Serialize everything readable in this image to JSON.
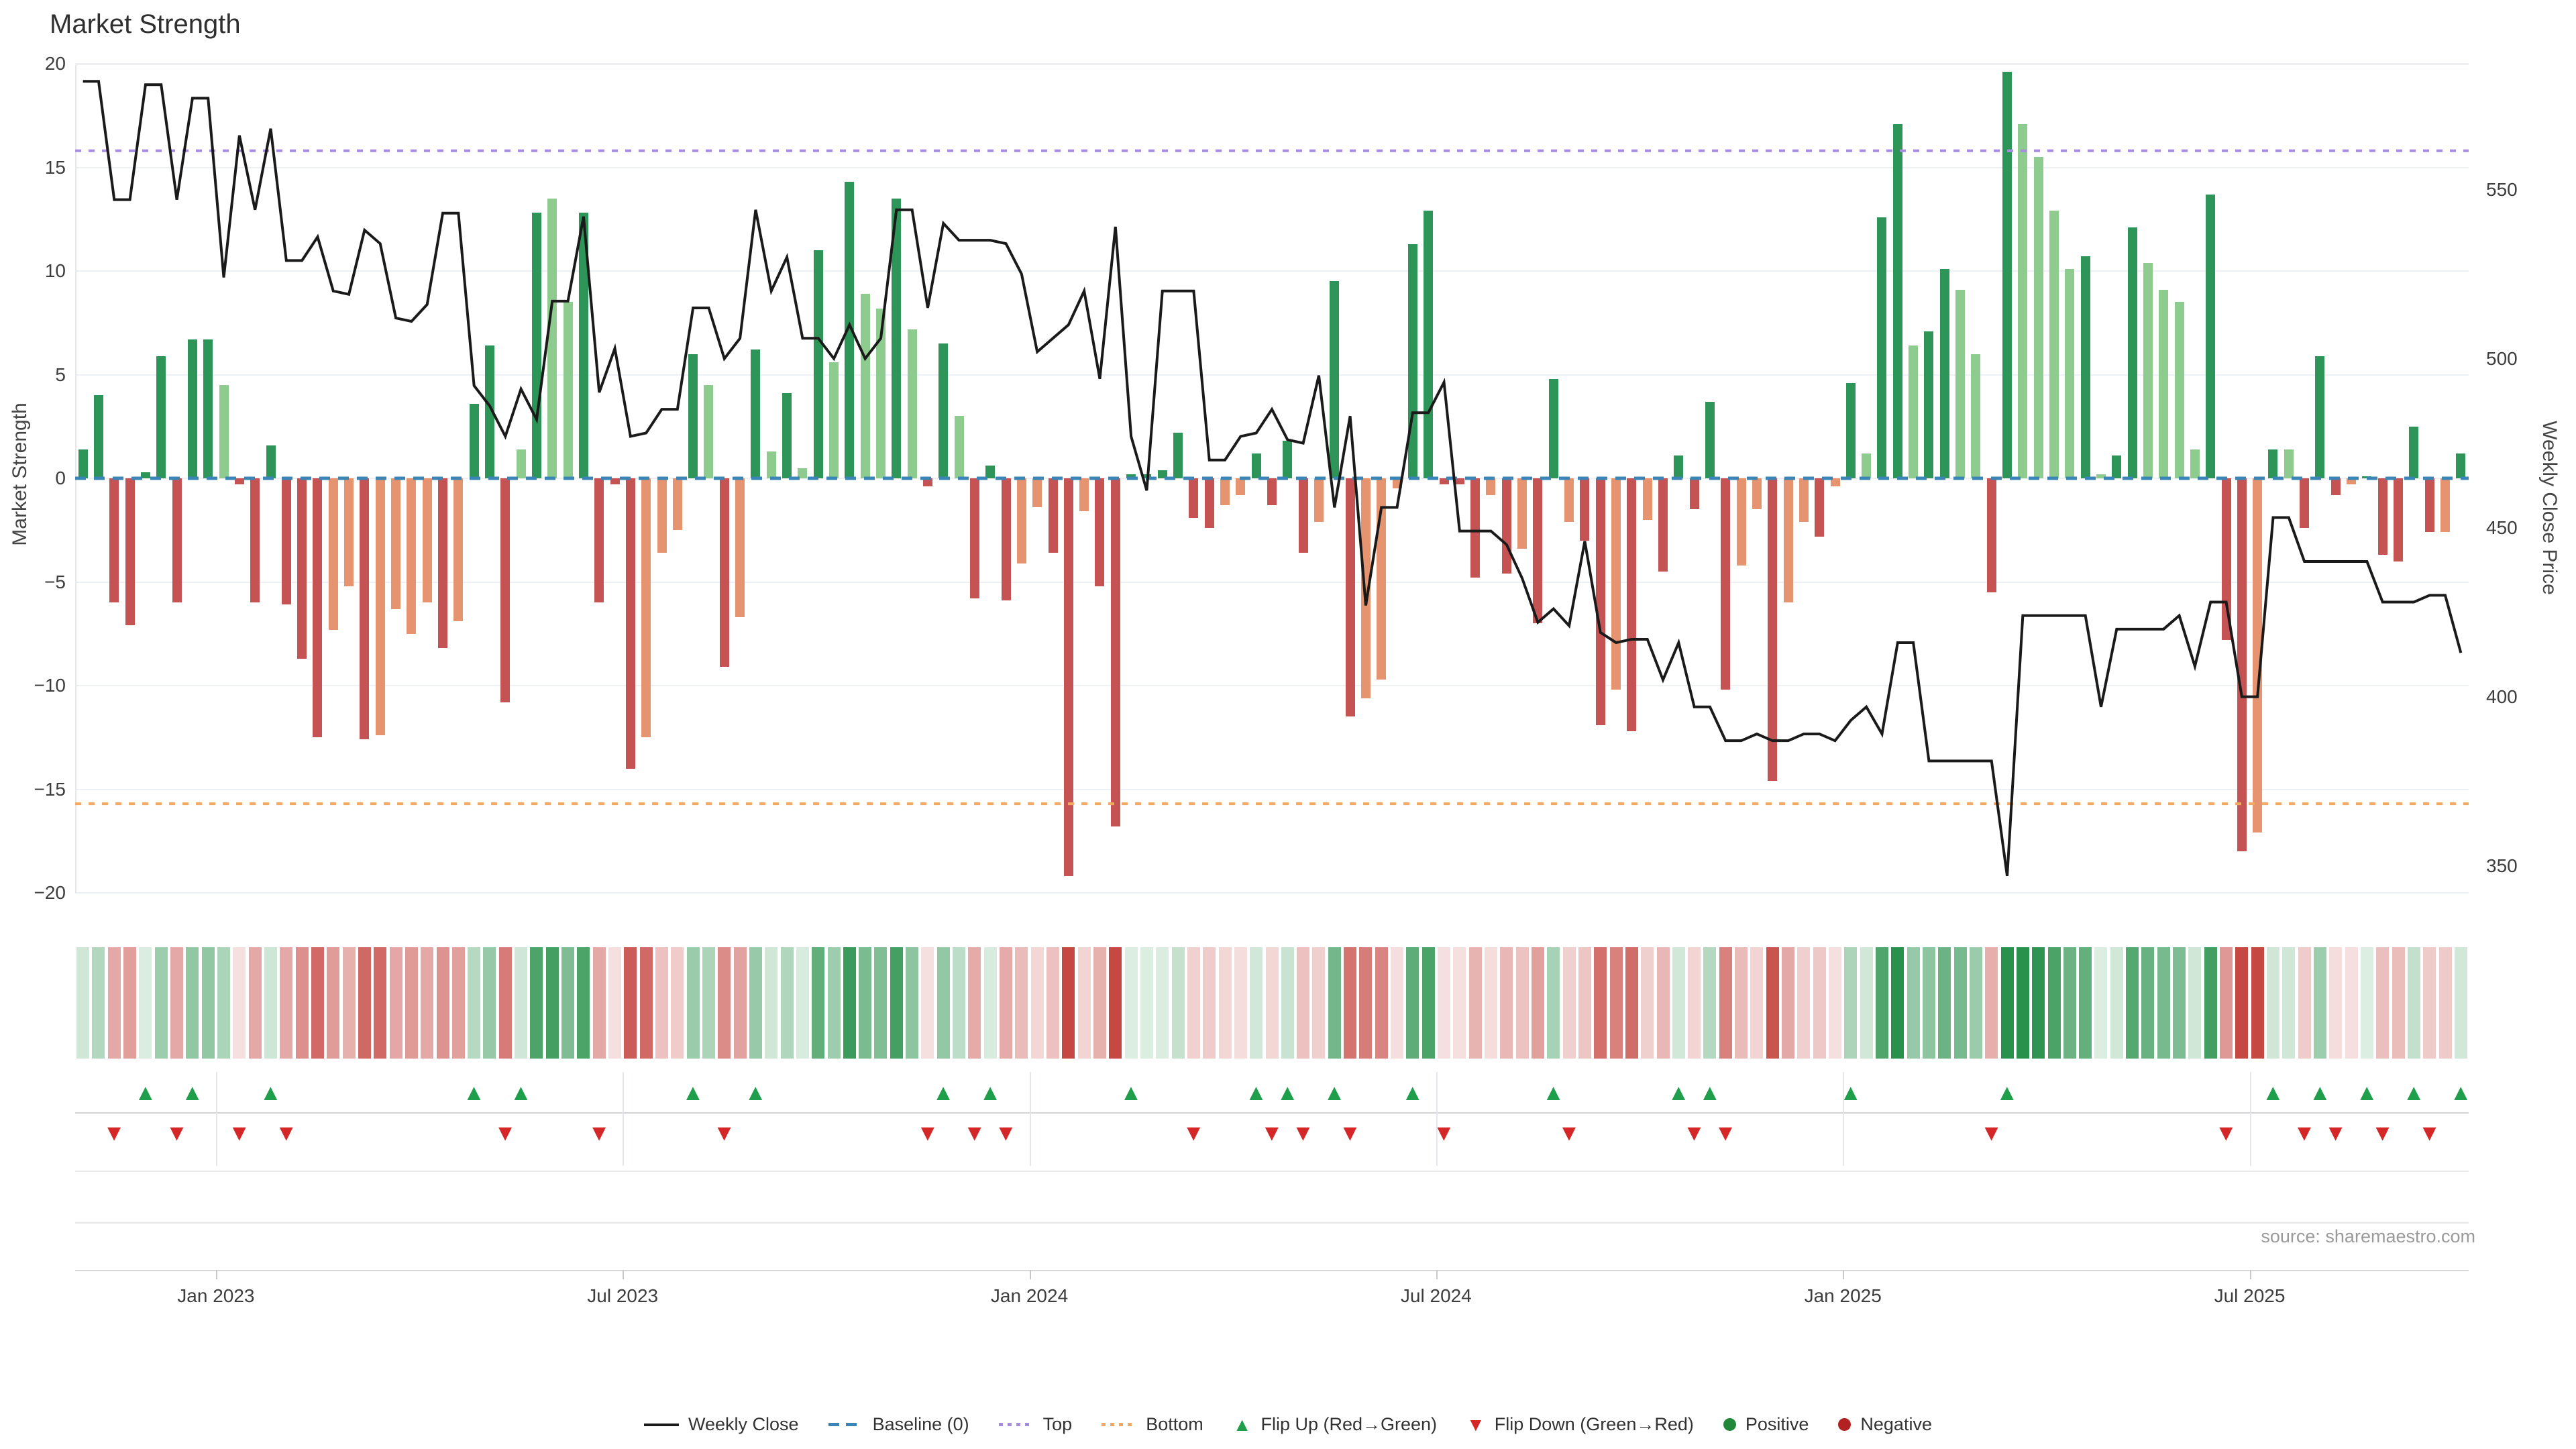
{
  "title": "Market Strength",
  "source": "source: sharemaestro.com",
  "y_left": {
    "label": "Market Strength",
    "ticks": [
      20,
      15,
      10,
      5,
      0,
      -5,
      -10,
      -15,
      -20
    ],
    "range": [
      -20,
      20
    ]
  },
  "y_right": {
    "label": "Weekly Close Price",
    "ticks": [
      550,
      500,
      450,
      400,
      350
    ]
  },
  "legend": {
    "items": [
      {
        "id": "weekly-close",
        "label": "Weekly Close",
        "type": "line",
        "color": "#1a1a1a"
      },
      {
        "id": "baseline",
        "label": "Baseline (0)",
        "type": "dash",
        "color": "#3a85b5"
      },
      {
        "id": "top",
        "label": "Top",
        "type": "dotted",
        "color": "#a78de0"
      },
      {
        "id": "bottom",
        "label": "Bottom",
        "type": "dotted",
        "color": "#f2a965"
      },
      {
        "id": "flip-up",
        "label": "Flip Up (Red→Green)",
        "type": "tri-up",
        "color": "#1f9e4b"
      },
      {
        "id": "flip-down",
        "label": "Flip Down (Green→Red)",
        "type": "tri-down",
        "color": "#d62728"
      },
      {
        "id": "positive",
        "label": "Positive",
        "type": "circle",
        "color": "#218739"
      },
      {
        "id": "negative",
        "label": "Negative",
        "type": "circle",
        "color": "#b22222"
      }
    ]
  },
  "chart_data": {
    "type": "bar",
    "subtype": "bar+line+heatmap",
    "title": "Market Strength",
    "ylabel_left": "Market Strength",
    "ylabel_right": "Weekly Close Price",
    "baseline": 0,
    "top_band": 15.8,
    "bottom_band": -15.7,
    "y_left_range": [
      -20,
      20
    ],
    "price_at_zero_strength": 464.6,
    "price_per_strength_unit": 6.13,
    "n_weeks": 153,
    "x_ticks": [
      {
        "label": "Jan 2023",
        "week": 9
      },
      {
        "label": "Jul 2023",
        "week": 35
      },
      {
        "label": "Jan 2024",
        "week": 61
      },
      {
        "label": "Jul 2024",
        "week": 87
      },
      {
        "label": "Jan 2025",
        "week": 113
      },
      {
        "label": "Jul 2025",
        "week": 139
      }
    ],
    "strength": [
      1.4,
      4.0,
      -6.0,
      -7.1,
      0.3,
      5.9,
      -6.0,
      6.7,
      6.7,
      4.5,
      -0.3,
      -6.0,
      1.6,
      -6.1,
      -8.7,
      -12.5,
      -7.3,
      -5.2,
      -12.6,
      -12.4,
      -6.3,
      -7.5,
      -6.0,
      -8.2,
      -6.9,
      3.6,
      6.4,
      -10.8,
      1.4,
      12.8,
      13.5,
      8.5,
      12.8,
      -6.0,
      -0.3,
      -14.0,
      -12.5,
      -3.6,
      -2.5,
      6.0,
      4.5,
      -9.1,
      -6.7,
      6.2,
      1.3,
      4.1,
      0.5,
      11.0,
      5.6,
      14.3,
      8.9,
      8.2,
      13.5,
      7.2,
      -0.4,
      6.5,
      3.0,
      -5.8,
      0.6,
      -5.9,
      -4.1,
      -1.4,
      -3.6,
      -19.2,
      -1.6,
      -5.2,
      -16.8,
      0.2,
      0.2,
      0.4,
      2.2,
      -1.9,
      -2.4,
      -1.3,
      -0.8,
      1.2,
      -1.3,
      1.8,
      -3.6,
      -2.1,
      9.5,
      -11.5,
      -10.6,
      -9.7,
      -0.5,
      11.3,
      12.9,
      -0.3,
      -0.3,
      -4.8,
      -0.8,
      -4.6,
      -3.4,
      -7.0,
      4.8,
      -2.1,
      -3.0,
      -11.9,
      -10.2,
      -12.2,
      -2.0,
      -4.5,
      1.1,
      -1.5,
      3.7,
      -10.2,
      -4.2,
      -1.5,
      -14.6,
      -6.0,
      -2.1,
      -2.8,
      -0.4,
      4.6,
      1.2,
      12.6,
      17.1,
      6.4,
      7.1,
      10.1,
      9.1,
      6.0,
      -5.5,
      19.6,
      17.1,
      15.5,
      12.9,
      10.1,
      10.7,
      0.2,
      1.1,
      12.1,
      10.4,
      9.1,
      8.5,
      1.4,
      13.7,
      -7.8,
      -18.0,
      -17.1,
      1.4,
      1.4,
      -2.4,
      5.9,
      -0.8,
      -0.3,
      0.1,
      -3.7,
      -4.0,
      2.5,
      -2.6,
      -2.6,
      1.2
    ],
    "shade_light": [
      0,
      0,
      0,
      0,
      0,
      0,
      0,
      0,
      0,
      1,
      0,
      0,
      0,
      0,
      0,
      0,
      1,
      1,
      0,
      1,
      1,
      1,
      1,
      0,
      1,
      0,
      0,
      0,
      1,
      0,
      1,
      1,
      0,
      0,
      0,
      0,
      1,
      1,
      1,
      0,
      1,
      0,
      1,
      0,
      1,
      0,
      1,
      0,
      1,
      0,
      1,
      1,
      0,
      1,
      0,
      0,
      1,
      0,
      0,
      0,
      1,
      1,
      0,
      0,
      1,
      0,
      0,
      0,
      0,
      0,
      0,
      0,
      0,
      1,
      1,
      0,
      0,
      0,
      0,
      1,
      0,
      0,
      1,
      1,
      1,
      0,
      0,
      0,
      0,
      0,
      1,
      0,
      1,
      0,
      0,
      1,
      0,
      0,
      1,
      0,
      1,
      0,
      0,
      0,
      0,
      0,
      1,
      1,
      0,
      1,
      1,
      0,
      1,
      0,
      1,
      0,
      0,
      1,
      0,
      0,
      1,
      1,
      0,
      0,
      1,
      1,
      1,
      1,
      0,
      1,
      0,
      0,
      1,
      1,
      1,
      1,
      0,
      0,
      0,
      1,
      0,
      1,
      0,
      0,
      0,
      1,
      0,
      0,
      0,
      0,
      0,
      1,
      0
    ],
    "weekly_close": [
      582,
      582,
      547,
      547,
      581,
      581,
      547,
      577,
      577,
      524,
      566,
      544,
      568,
      529,
      529,
      536,
      520,
      519,
      538,
      534,
      512,
      511,
      516,
      543,
      543,
      492,
      486,
      477,
      491,
      482,
      517,
      517,
      542,
      490,
      503,
      477,
      478,
      485,
      485,
      515,
      515,
      500,
      506,
      544,
      520,
      530,
      506,
      506,
      500,
      510,
      500,
      506,
      544,
      544,
      515,
      540,
      535,
      535,
      535,
      534,
      525,
      502,
      506,
      510,
      520,
      494,
      539,
      477,
      461,
      520,
      520,
      520,
      470,
      470,
      477,
      478,
      485,
      476,
      475,
      495,
      456,
      483,
      427,
      456,
      456,
      484,
      484,
      493,
      449,
      449,
      449,
      445,
      435,
      422,
      426,
      421,
      446,
      419,
      416,
      417,
      417,
      405,
      416,
      397,
      397,
      387,
      387,
      389,
      387,
      387,
      389,
      389,
      387,
      393,
      397,
      389,
      416,
      416,
      381,
      381,
      381,
      381,
      381,
      347,
      424,
      424,
      424,
      424,
      424,
      397,
      420,
      420,
      420,
      420,
      424,
      409,
      428,
      428,
      400,
      400,
      453,
      453,
      440,
      440,
      440,
      440,
      440,
      428,
      428,
      428,
      430,
      430,
      413
    ],
    "colors": {
      "bar_pos_dark": "#2d9558",
      "bar_pos_light": "#8ecb8e",
      "bar_neg_dark": "#c65353",
      "bar_neg_light": "#e6936f",
      "price_line": "#1a1a1a",
      "baseline": "#3a85b5",
      "top_band": "#a78de0",
      "bottom_band": "#f2a965",
      "flip_up": "#1f9e4b",
      "flip_down": "#d62728",
      "heat_pos": "40,145,75",
      "heat_neg": "198,72,66"
    },
    "legend_position": "bottom-center",
    "grid": true
  }
}
